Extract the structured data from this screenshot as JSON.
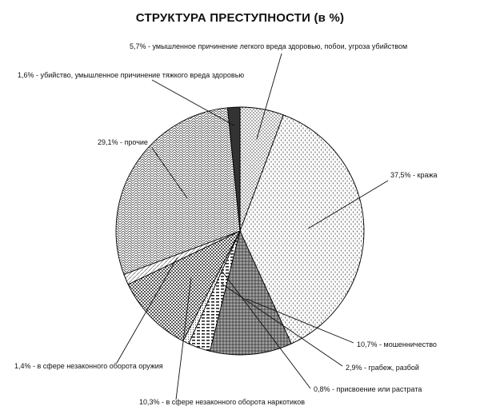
{
  "chart_data": {
    "type": "pie",
    "title": "СТРУКТУРА ПРЕСТУПНОСТИ  (в %)",
    "slices": [
      {
        "label": "5,7% - умышленное причинение легкого вреда здоровью, побои, угроза убийством",
        "value": 5.7
      },
      {
        "label": "37,5% - кража",
        "value": 37.5
      },
      {
        "label": "10,7% - мошенничество",
        "value": 10.7
      },
      {
        "label": "2,9% - грабеж, разбой",
        "value": 2.9
      },
      {
        "label": "0,8% - присвоение или растрата",
        "value": 0.8
      },
      {
        "label": "10,3% - в сфере незаконного оборота наркотиков",
        "value": 10.3
      },
      {
        "label": "1,4% - в сфере незаконного оборота оружия",
        "value": 1.4
      },
      {
        "label": "29,1% - прочие",
        "value": 29.1
      },
      {
        "label": "1,6% - убийство, умышленное причинение тяжкого вреда здоровью",
        "value": 1.6
      }
    ]
  }
}
